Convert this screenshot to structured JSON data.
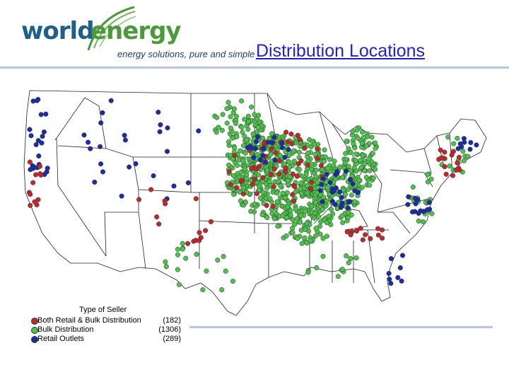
{
  "header": {
    "logo_word_1": "world",
    "logo_word_2": "energy",
    "logo_tagline": "energy solutions, pure and simple",
    "title": "Distribution Locations"
  },
  "colors": {
    "title": "#2222cc",
    "logo_world": "#1f5f8b",
    "logo_energy": "#4a9a3a",
    "rule": "#b7c6e6",
    "both": "#c0282c",
    "bulk": "#4cc24a",
    "retail": "#1c2ba8"
  },
  "legend": {
    "title": "Type of Seller",
    "items": [
      {
        "label": "Both Retail & Bulk Distribution",
        "count": "(182)",
        "color": "#c0282c"
      },
      {
        "label": "Bulk Distribution",
        "count": "(1306)",
        "color": "#4cc24a"
      },
      {
        "label": "Retail Outlets",
        "count": "(289)",
        "color": "#1c2ba8"
      }
    ]
  }
}
